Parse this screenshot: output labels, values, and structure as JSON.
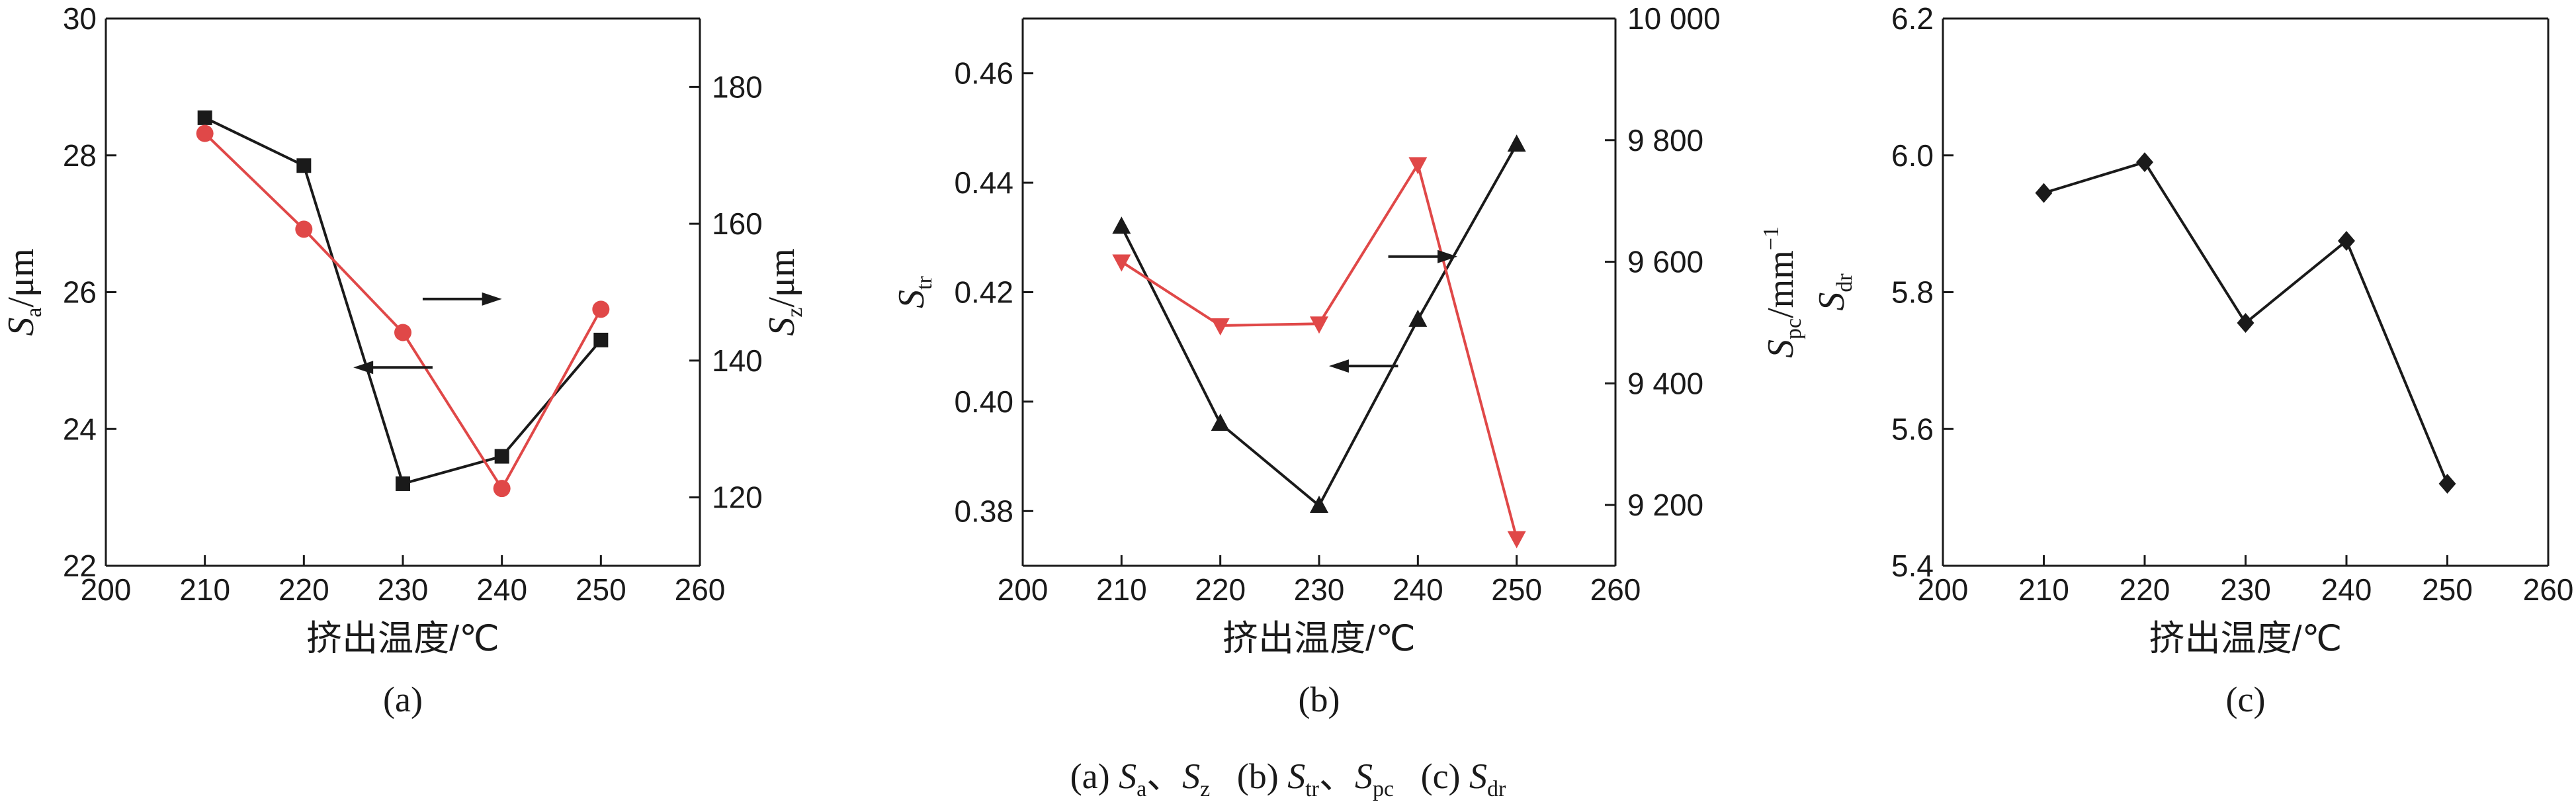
{
  "caption": {
    "a_prefix": "(a) ",
    "a_s1": "a",
    "a_sep": "、",
    "a_s2": "z",
    "b_prefix": "(b) ",
    "b_s1": "tr",
    "b_sep": "、",
    "b_s2": "pc",
    "c_prefix": "(c) ",
    "c_s1": "dr",
    "symbol": "S"
  },
  "colors": {
    "black_series": "#1a1a1a",
    "red_series": "#e04848"
  },
  "chart_data": [
    {
      "id": "a",
      "type": "line",
      "panel_label": "(a)",
      "xlabel": "挤出温度/℃",
      "xlim": [
        200,
        260
      ],
      "xticks": [
        200,
        210,
        220,
        230,
        240,
        250,
        260
      ],
      "grid": false,
      "x": [
        210,
        220,
        230,
        240,
        250
      ],
      "y_left": {
        "symbol": "S",
        "sub": "a",
        "unit": "/μm",
        "lim": [
          22,
          30
        ],
        "ticks": [
          22,
          24,
          26,
          28,
          30
        ],
        "tick_labels": [
          "22",
          "24",
          "26",
          "28",
          "30"
        ]
      },
      "y_right": {
        "symbol": "S",
        "sub": "z",
        "unit": "/μm",
        "lim": [
          110,
          190
        ],
        "ticks": [
          120,
          140,
          160,
          180
        ],
        "tick_labels": [
          "120",
          "140",
          "160",
          "180"
        ]
      },
      "series": [
        {
          "axis": "left",
          "color": "#1a1a1a",
          "marker": "square",
          "values": [
            28.55,
            27.85,
            23.2,
            23.6,
            25.3
          ]
        },
        {
          "axis": "right",
          "color": "#e04848",
          "marker": "circle",
          "values": [
            173.2,
            159.2,
            144.1,
            121.3,
            147.5
          ]
        }
      ],
      "arrows": [
        {
          "direction": "right",
          "x_from": 232,
          "x_to": 240,
          "y": 25.9,
          "axis": "left"
        },
        {
          "direction": "left",
          "x_from": 233,
          "x_to": 225,
          "y": 24.9,
          "axis": "left"
        }
      ]
    },
    {
      "id": "b",
      "type": "line",
      "panel_label": "(b)",
      "xlabel": "挤出温度/℃",
      "xlim": [
        200,
        260
      ],
      "xticks": [
        200,
        210,
        220,
        230,
        240,
        250,
        260
      ],
      "grid": false,
      "x": [
        210,
        220,
        230,
        240,
        250
      ],
      "y_left": {
        "symbol": "S",
        "sub": "tr",
        "unit": "",
        "lim": [
          0.37,
          0.47
        ],
        "ticks": [
          0.38,
          0.4,
          0.42,
          0.44,
          0.46
        ],
        "tick_labels": [
          "0.38",
          "0.40",
          "0.42",
          "0.44",
          "0.46"
        ]
      },
      "y_right": {
        "symbol": "S",
        "sub": "pc",
        "unit": "/mm",
        "sup": "−1",
        "lim": [
          9100,
          10000
        ],
        "ticks": [
          9200,
          9400,
          9600,
          9800,
          10000
        ],
        "tick_labels": [
          "9 200",
          "9 400",
          "9 600",
          "9 800",
          "10 000"
        ]
      },
      "series": [
        {
          "axis": "left",
          "color": "#1a1a1a",
          "marker": "triangle-up",
          "values": [
            0.432,
            0.396,
            0.381,
            0.415,
            0.447
          ]
        },
        {
          "axis": "right",
          "color": "#e04848",
          "marker": "triangle-down",
          "values": [
            9600,
            9495,
            9498,
            9760,
            9145
          ]
        }
      ],
      "arrows": [
        {
          "direction": "right",
          "x_from": 237,
          "x_to": 244,
          "y": 0.4265,
          "axis": "left"
        },
        {
          "direction": "left",
          "x_from": 238,
          "x_to": 231,
          "y": 0.4065,
          "axis": "left"
        }
      ]
    },
    {
      "id": "c",
      "type": "line",
      "panel_label": "(c)",
      "xlabel": "挤出温度/℃",
      "xlim": [
        200,
        260
      ],
      "xticks": [
        200,
        210,
        220,
        230,
        240,
        250,
        260
      ],
      "grid": false,
      "x": [
        210,
        220,
        230,
        240,
        250
      ],
      "y_left": {
        "symbol": "S",
        "sub": "dr",
        "unit": "",
        "lim": [
          5.4,
          6.2
        ],
        "ticks": [
          5.4,
          5.6,
          5.8,
          6.0,
          6.2
        ],
        "tick_labels": [
          "5.4",
          "5.6",
          "5.8",
          "6.0",
          "6.2"
        ]
      },
      "series": [
        {
          "axis": "left",
          "color": "#1a1a1a",
          "marker": "diamond",
          "values": [
            5.945,
            5.99,
            5.755,
            5.875,
            5.52
          ]
        }
      ]
    }
  ]
}
